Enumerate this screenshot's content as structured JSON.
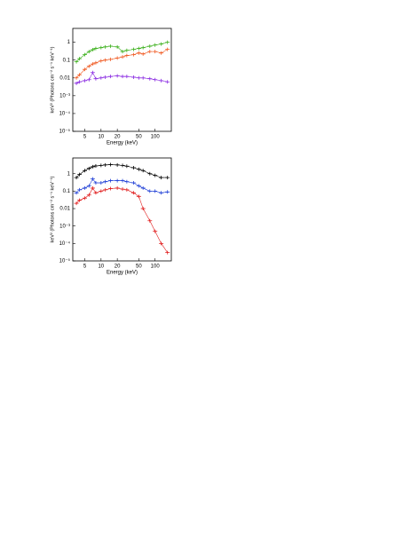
{
  "chart_data": [
    {
      "type": "line",
      "xlabel": "Energy (keV)",
      "ylabel": "keV² (Photons cm⁻² s⁻¹ keV⁻¹)",
      "xscale": "log",
      "yscale": "log",
      "xlim": [
        3,
        200
      ],
      "xticks": [
        5,
        10,
        20,
        50,
        100
      ],
      "ylim": [
        1e-05,
        6
      ],
      "yticks": [
        1,
        0.1,
        0.01,
        {
          "value": 0.001,
          "label": "10⁻³"
        },
        {
          "value": 0.0001,
          "label": "10⁻⁴"
        },
        {
          "value": 1e-05,
          "label": "10⁻⁵"
        }
      ],
      "x": [
        3.5,
        4,
        5,
        6,
        7,
        8,
        10,
        12,
        15,
        20,
        25,
        30,
        40,
        50,
        60,
        80,
        100,
        130,
        170
      ],
      "series": [
        {
          "color": "#3cb01c",
          "values": [
            0.08,
            0.12,
            0.2,
            0.3,
            0.38,
            0.45,
            0.5,
            0.55,
            0.6,
            0.55,
            0.3,
            0.35,
            0.4,
            0.45,
            0.5,
            0.6,
            0.7,
            0.8,
            1.0
          ]
        },
        {
          "color": "#f05a22",
          "values": [
            0.01,
            0.015,
            0.03,
            0.045,
            0.06,
            0.07,
            0.09,
            0.1,
            0.11,
            0.13,
            0.15,
            0.18,
            0.2,
            0.25,
            0.22,
            0.3,
            0.3,
            0.25,
            0.4
          ]
        },
        {
          "color": "#8a2be2",
          "values": [
            0.005,
            0.006,
            0.007,
            0.008,
            0.02,
            0.009,
            0.01,
            0.011,
            0.012,
            0.013,
            0.012,
            0.012,
            0.011,
            0.01,
            0.01,
            0.009,
            0.008,
            0.007,
            0.006
          ]
        }
      ]
    },
    {
      "type": "line",
      "xlabel": "Energy (keV)",
      "ylabel": "keV² (Photons cm⁻² s⁻¹ keV⁻¹)",
      "xscale": "log",
      "yscale": "log",
      "xlim": [
        3,
        200
      ],
      "xticks": [
        5,
        10,
        20,
        50,
        100
      ],
      "ylim": [
        1e-05,
        8
      ],
      "yticks": [
        1,
        0.1,
        0.01,
        {
          "value": 0.001,
          "label": "10⁻³"
        },
        {
          "value": 0.0001,
          "label": "10⁻⁴"
        },
        {
          "value": 1e-05,
          "label": "10⁻⁵"
        }
      ],
      "x": [
        3.5,
        4,
        5,
        6,
        7,
        8,
        10,
        12,
        15,
        20,
        25,
        30,
        40,
        50,
        60,
        80,
        100,
        130,
        170
      ],
      "series": [
        {
          "color": "#000000",
          "values": [
            0.6,
            0.9,
            1.5,
            2,
            2.5,
            2.8,
            3,
            3.2,
            3.3,
            3.2,
            3,
            2.7,
            2.2,
            1.8,
            1.5,
            1,
            0.8,
            0.6,
            0.6
          ]
        },
        {
          "color": "#1f3fd6",
          "values": [
            0.08,
            0.12,
            0.15,
            0.2,
            0.5,
            0.3,
            0.3,
            0.35,
            0.4,
            0.4,
            0.4,
            0.35,
            0.3,
            0.2,
            0.15,
            0.1,
            0.1,
            0.08,
            0.09
          ]
        },
        {
          "color": "#e01b1b",
          "values": [
            0.02,
            0.03,
            0.04,
            0.06,
            0.15,
            0.08,
            0.1,
            0.12,
            0.14,
            0.15,
            0.13,
            0.12,
            0.08,
            0.05,
            0.01,
            0.002,
            0.0005,
            0.0001,
            3e-05
          ]
        }
      ]
    }
  ]
}
